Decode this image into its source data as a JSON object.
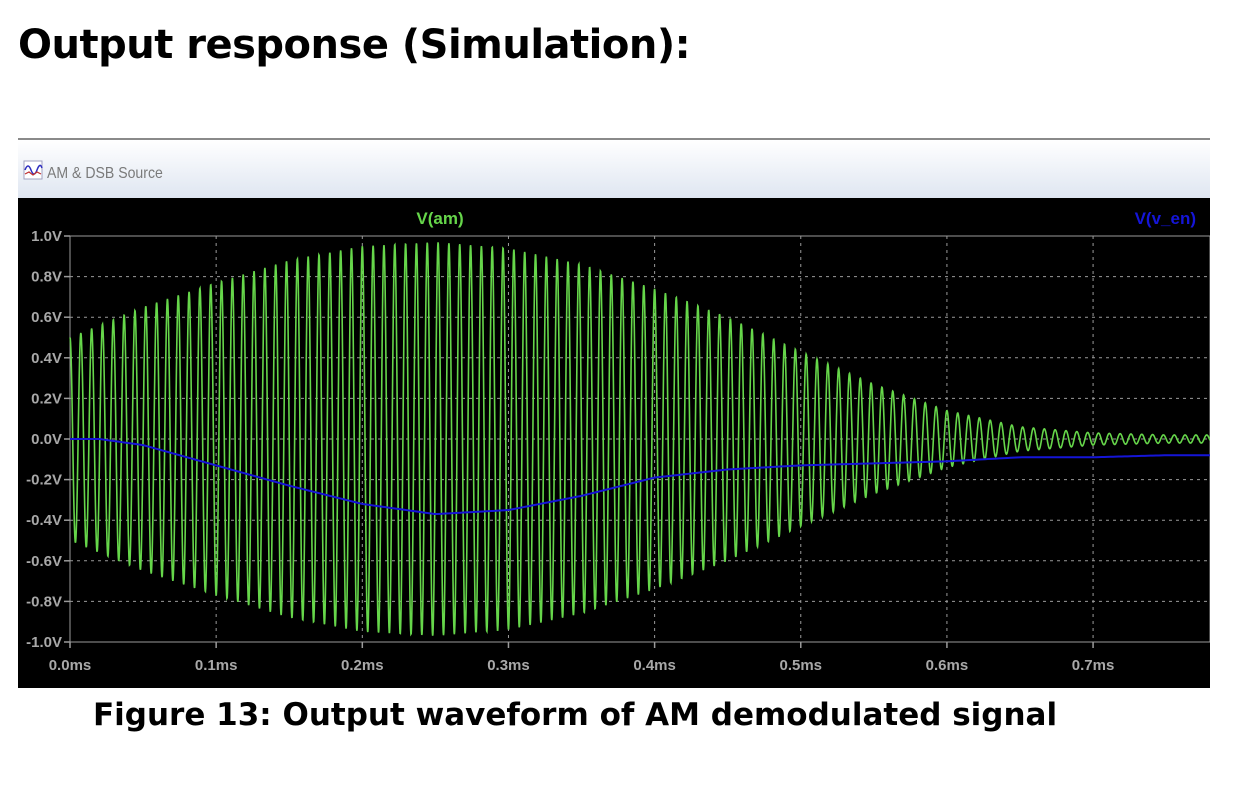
{
  "heading": "Output response (Simulation):",
  "window": {
    "title": "AM & DSB Source",
    "icon": "waveform-icon"
  },
  "caption": "Figure 13: Output waveform of AM demodulated signal",
  "colors": {
    "plot_background": "#000000",
    "grid": "#9a9a9a",
    "axis_text": "#a8a8a8",
    "am_trace": "#66d64a",
    "env_trace": "#1515d8"
  },
  "chart_data": {
    "type": "line",
    "title": "",
    "xlabel": "",
    "ylabel": "",
    "xlim": [
      0.0,
      0.78
    ],
    "ylim": [
      -1.0,
      1.0
    ],
    "x_ticks": [
      0.0,
      0.1,
      0.2,
      0.3,
      0.4,
      0.5,
      0.6,
      0.7
    ],
    "x_tick_labels": [
      "0.0ms",
      "0.1ms",
      "0.2ms",
      "0.3ms",
      "0.4ms",
      "0.5ms",
      "0.6ms",
      "0.7ms"
    ],
    "y_ticks": [
      1.0,
      0.8,
      0.6,
      0.4,
      0.2,
      0.0,
      -0.2,
      -0.4,
      -0.6,
      -0.8,
      -1.0
    ],
    "y_tick_labels": [
      "1.0V",
      "0.8V",
      "0.6V",
      "0.4V",
      "0.2V",
      "0.0V",
      "-0.2V",
      "-0.4V",
      "-0.6V",
      "-0.8V",
      "-1.0V"
    ],
    "grid": true,
    "series": [
      {
        "name": "V(am)",
        "color": "#66d64a",
        "legend_position": "top-center",
        "carrier_cycles_per_ms": 135,
        "envelope": {
          "x": [
            0.0,
            0.05,
            0.1,
            0.15,
            0.2,
            0.25,
            0.3,
            0.35,
            0.4,
            0.45,
            0.5,
            0.55,
            0.6,
            0.65,
            0.7,
            0.75,
            0.78
          ],
          "y": [
            0.5,
            0.65,
            0.77,
            0.88,
            0.95,
            0.97,
            0.94,
            0.86,
            0.74,
            0.6,
            0.43,
            0.27,
            0.14,
            0.06,
            0.03,
            0.02,
            0.02
          ]
        }
      },
      {
        "name": "V(v_en)",
        "color": "#1515d8",
        "legend_position": "top-right",
        "x": [
          0.0,
          0.02,
          0.05,
          0.1,
          0.15,
          0.2,
          0.25,
          0.3,
          0.35,
          0.4,
          0.45,
          0.5,
          0.55,
          0.6,
          0.65,
          0.7,
          0.75,
          0.78
        ],
        "y": [
          0.0,
          0.0,
          -0.03,
          -0.13,
          -0.23,
          -0.32,
          -0.37,
          -0.35,
          -0.28,
          -0.19,
          -0.15,
          -0.13,
          -0.12,
          -0.11,
          -0.09,
          -0.09,
          -0.08,
          -0.08
        ]
      }
    ]
  }
}
